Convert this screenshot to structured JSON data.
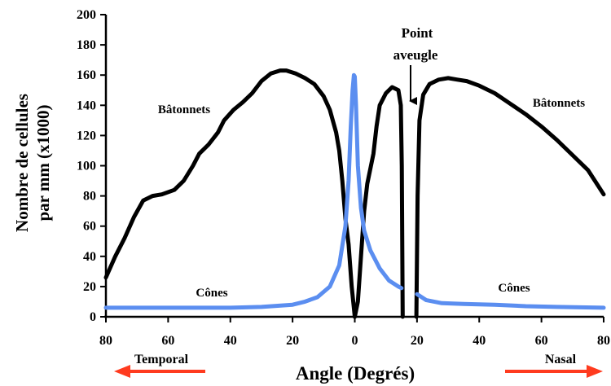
{
  "chart_data": {
    "type": "line",
    "title": "",
    "ylabel_line1": "Nombre de cellules",
    "ylabel_line2": "par mm (x1000)",
    "xlabel": "Angle (Degrés)",
    "xlim": [
      -80,
      80
    ],
    "ylim": [
      0,
      200
    ],
    "x_ticks": [
      -80,
      -60,
      -40,
      -20,
      0,
      20,
      40,
      60,
      80
    ],
    "x_tick_labels": [
      "80",
      "60",
      "40",
      "20",
      "0",
      "20",
      "40",
      "60",
      "80"
    ],
    "y_ticks": [
      0,
      20,
      40,
      60,
      80,
      100,
      120,
      140,
      160,
      180,
      200
    ],
    "y_tick_labels": [
      "0",
      "20",
      "40",
      "60",
      "80",
      "100",
      "120",
      "140",
      "160",
      "180",
      "200"
    ],
    "grid": false,
    "series": [
      {
        "name": "Bâtonnets",
        "color": "#000000",
        "segments": [
          [
            [
              -80,
              26
            ],
            [
              -77,
              40
            ],
            [
              -74,
              52
            ],
            [
              -71,
              66
            ],
            [
              -68,
              77
            ],
            [
              -65,
              80
            ],
            [
              -62,
              81
            ],
            [
              -58,
              84
            ],
            [
              -55,
              90
            ],
            [
              -52,
              100
            ],
            [
              -50,
              108
            ],
            [
              -47,
              114
            ],
            [
              -44,
              122
            ],
            [
              -42,
              130
            ],
            [
              -39,
              137
            ],
            [
              -36,
              142
            ],
            [
              -33,
              148
            ],
            [
              -30,
              156
            ],
            [
              -27,
              161
            ],
            [
              -24,
              163
            ],
            [
              -22,
              163
            ],
            [
              -19,
              161
            ],
            [
              -16,
              158
            ],
            [
              -13,
              154
            ],
            [
              -10,
              146
            ],
            [
              -8,
              137
            ],
            [
              -6,
              122
            ],
            [
              -5,
              110
            ],
            [
              -4,
              90
            ],
            [
              -3,
              65
            ],
            [
              -2,
              48
            ],
            [
              -1,
              20
            ],
            [
              0,
              0
            ]
          ],
          [
            [
              0,
              0
            ],
            [
              1,
              10
            ],
            [
              2,
              40
            ],
            [
              3,
              70
            ],
            [
              4,
              88
            ],
            [
              6,
              108
            ],
            [
              7,
              126
            ],
            [
              8,
              140
            ],
            [
              10,
              148
            ],
            [
              12,
              152
            ],
            [
              14,
              150
            ],
            [
              14.8,
              140
            ],
            [
              15.1,
              100
            ],
            [
              15.4,
              0
            ]
          ],
          [
            [
              19.8,
              0
            ],
            [
              20.2,
              80
            ],
            [
              20.8,
              130
            ],
            [
              22,
              147
            ],
            [
              24,
              154
            ],
            [
              27,
              157
            ],
            [
              30,
              158
            ],
            [
              33,
              157
            ],
            [
              36,
              156
            ],
            [
              40,
              153
            ],
            [
              45,
              148
            ],
            [
              50,
              141
            ],
            [
              55,
              134
            ],
            [
              60,
              126
            ],
            [
              65,
              117
            ],
            [
              70,
              107
            ],
            [
              75,
              97
            ],
            [
              80,
              81
            ]
          ]
        ]
      },
      {
        "name": "Cônes",
        "color": "#5b8ef0",
        "segments": [
          [
            [
              -80,
              6
            ],
            [
              -60,
              6
            ],
            [
              -40,
              6
            ],
            [
              -30,
              6.5
            ],
            [
              -20,
              8
            ],
            [
              -16,
              10
            ],
            [
              -12,
              13
            ],
            [
              -8,
              20
            ],
            [
              -5,
              34
            ],
            [
              -3,
              60
            ],
            [
              -2,
              90
            ],
            [
              -1.3,
              125
            ],
            [
              -0.7,
              150
            ],
            [
              -0.3,
              160
            ],
            [
              0,
              159
            ],
            [
              0.4,
              140
            ],
            [
              1,
              100
            ],
            [
              2,
              72
            ],
            [
              3,
              57
            ],
            [
              5,
              44
            ],
            [
              8,
              32
            ],
            [
              11,
              24
            ],
            [
              14,
              20
            ],
            [
              15,
              19
            ]
          ],
          [
            [
              20,
              15
            ],
            [
              23,
              11
            ],
            [
              28,
              9
            ],
            [
              35,
              8.5
            ],
            [
              45,
              8
            ],
            [
              55,
              7
            ],
            [
              65,
              6.5
            ],
            [
              80,
              6
            ]
          ]
        ]
      }
    ],
    "annotations": {
      "batonnets_left": "Bâtonnets",
      "batonnets_right": "Bâtonnets",
      "cones_left": "Cônes",
      "cones_right": "Cônes",
      "blind_spot_line1": "Point",
      "blind_spot_line2": "aveugle",
      "temporal": "Temporal",
      "nasal": "Nasal"
    },
    "arrow_color": "#ff3b1f"
  }
}
